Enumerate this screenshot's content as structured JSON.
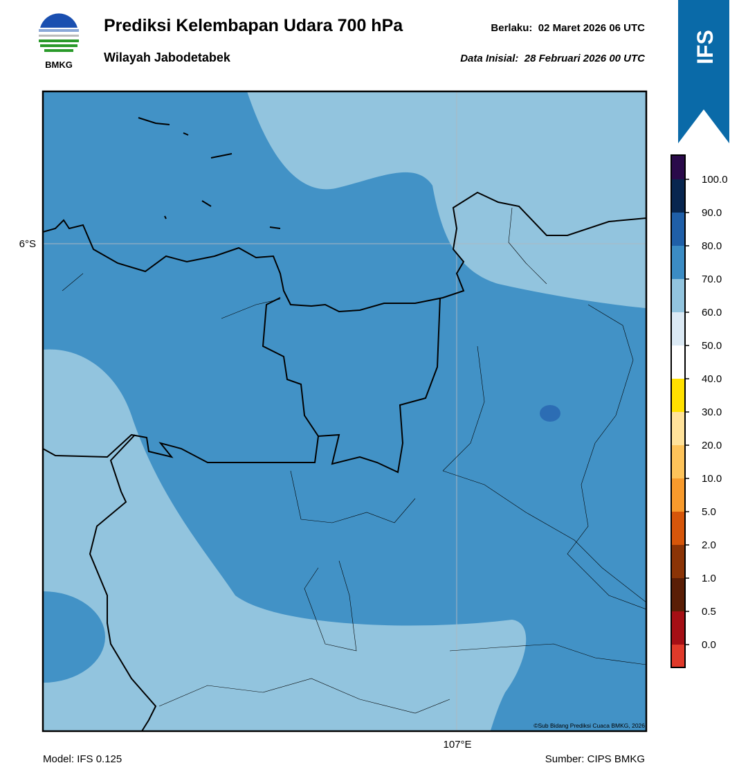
{
  "header": {
    "logo_text": "BMKG",
    "title": "Prediksi Kelembapan Udara 700 hPa",
    "subtitle": "Wilayah Jabodetabek",
    "valid": "Berlaku:  02 Maret 2026 06 UTC",
    "init": "Data Inisial:  28 Februari 2026 00 UTC",
    "badge": "IFS"
  },
  "map": {
    "lat_label": "6°S",
    "lon_label": "107°E",
    "credit": "©Sub Bidang Prediksi Cuaca BMKG, 2026"
  },
  "colorbar": {
    "labels": [
      "100.0",
      "90.0",
      "80.0",
      "70.0",
      "60.0",
      "50.0",
      "40.0",
      "30.0",
      "20.0",
      "10.0",
      "5.0",
      "2.0",
      "1.0",
      "0.5",
      "0.0"
    ]
  },
  "footer": {
    "model": "Model: IFS 0.125",
    "source": "Sumber: CIPS BMKG"
  }
}
